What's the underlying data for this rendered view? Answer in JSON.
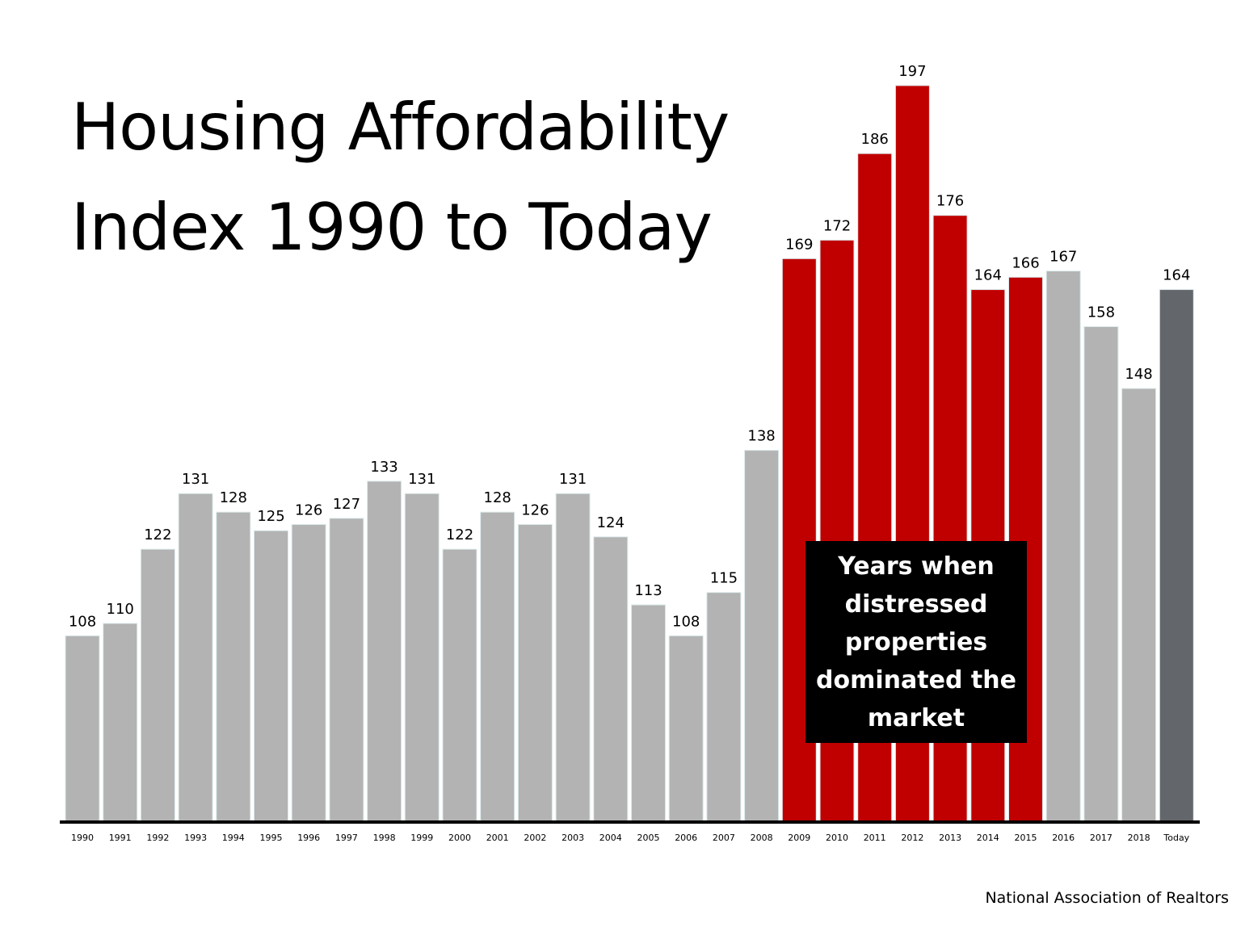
{
  "chart_data": {
    "type": "bar",
    "title_line1": "Housing Affordability",
    "title_line2": "Index 1990 to Today",
    "categories": [
      "1990",
      "1991",
      "1992",
      "1993",
      "1994",
      "1995",
      "1996",
      "1997",
      "1998",
      "1999",
      "2000",
      "2001",
      "2002",
      "2003",
      "2004",
      "2005",
      "2006",
      "2007",
      "2008",
      "2009",
      "2010",
      "2011",
      "2012",
      "2013",
      "2014",
      "2015",
      "2016",
      "2017",
      "2018",
      "Today"
    ],
    "values": [
      108,
      110,
      122,
      131,
      128,
      125,
      126,
      127,
      133,
      131,
      122,
      128,
      126,
      131,
      124,
      113,
      108,
      115,
      138,
      169,
      172,
      186,
      197,
      176,
      164,
      166,
      167,
      158,
      148,
      164
    ],
    "highlight_years": [
      "2009",
      "2010",
      "2011",
      "2012",
      "2013",
      "2014",
      "2015"
    ],
    "annotation": "Years when distressed properties dominated the market",
    "source": "National Association of Realtors",
    "colors": {
      "normal": "#b2b3b2",
      "highlight": "#c00000",
      "today": "#63666a",
      "axis": "#000000",
      "callout_bg": "#000000",
      "callout_text": "#ffffff"
    },
    "ylim": [
      78,
      203
    ],
    "grid": false,
    "legend": "none"
  }
}
